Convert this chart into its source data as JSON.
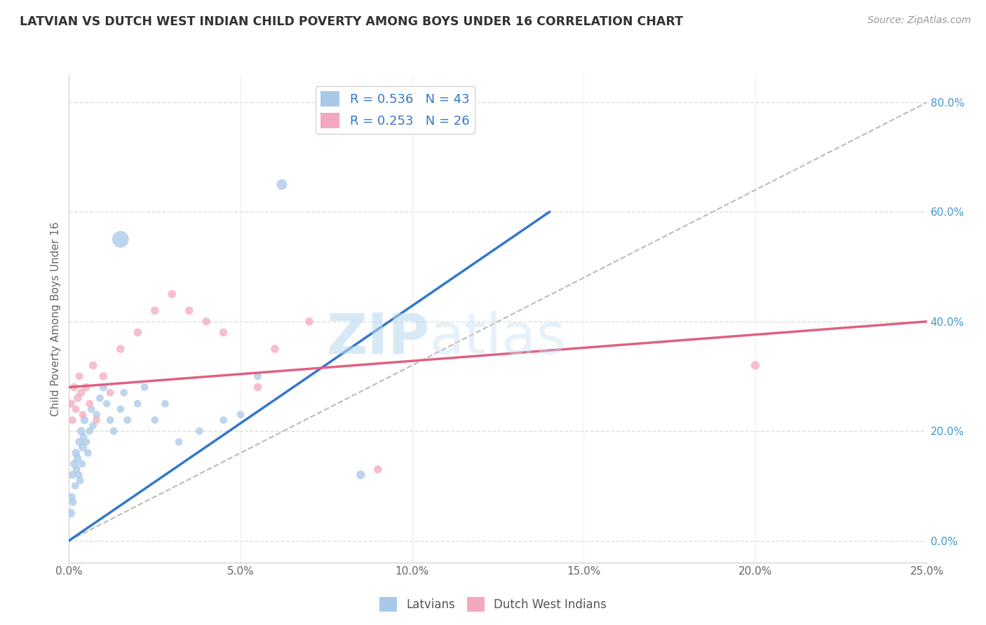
{
  "title": "LATVIAN VS DUTCH WEST INDIAN CHILD POVERTY AMONG BOYS UNDER 16 CORRELATION CHART",
  "source": "Source: ZipAtlas.com",
  "ylabel": "Child Poverty Among Boys Under 16",
  "xlabel_vals": [
    0.0,
    5.0,
    10.0,
    15.0,
    20.0,
    25.0
  ],
  "ylabel_vals": [
    0.0,
    20.0,
    40.0,
    60.0,
    80.0
  ],
  "xlim": [
    0,
    25
  ],
  "ylim": [
    -4,
    85
  ],
  "latvian_R": 0.536,
  "latvian_N": 43,
  "dutch_R": 0.253,
  "dutch_N": 26,
  "latvian_color": "#a8c8e8",
  "dutch_color": "#f4a8be",
  "latvian_line_color": "#3377cc",
  "dutch_line_color": "#e06080",
  "diagonal_color": "#bbbbbb",
  "watermark_zip": "ZIP",
  "watermark_atlas": "atlas",
  "latvian_line_x0": 0.0,
  "latvian_line_y0": 0.0,
  "latvian_line_x1": 14.0,
  "latvian_line_y1": 60.0,
  "dutch_line_x0": 0.0,
  "dutch_line_y0": 28.0,
  "dutch_line_x1": 25.0,
  "dutch_line_y1": 40.0,
  "diag_x0": 0.0,
  "diag_y0": 0.0,
  "diag_x1": 25.0,
  "diag_y1": 80.0,
  "latvian_pts_x": [
    0.05,
    0.08,
    0.1,
    0.12,
    0.15,
    0.18,
    0.2,
    0.22,
    0.25,
    0.28,
    0.3,
    0.32,
    0.35,
    0.38,
    0.4,
    0.42,
    0.45,
    0.5,
    0.55,
    0.6,
    0.65,
    0.7,
    0.8,
    0.9,
    1.0,
    1.1,
    1.2,
    1.3,
    1.5,
    1.6,
    1.7,
    2.0,
    2.2,
    2.5,
    2.8,
    3.2,
    3.8,
    4.5,
    5.0,
    5.5,
    1.5,
    6.2,
    8.5
  ],
  "latvian_pts_y": [
    5,
    8,
    12,
    7,
    14,
    10,
    16,
    13,
    15,
    12,
    18,
    11,
    20,
    14,
    17,
    19,
    22,
    18,
    16,
    20,
    24,
    21,
    23,
    26,
    28,
    25,
    22,
    20,
    24,
    27,
    22,
    25,
    28,
    22,
    25,
    18,
    20,
    22,
    23,
    30,
    55,
    65,
    12
  ],
  "latvian_pts_size": [
    80,
    60,
    70,
    60,
    70,
    60,
    70,
    60,
    70,
    60,
    70,
    60,
    70,
    60,
    70,
    60,
    70,
    60,
    60,
    60,
    60,
    60,
    60,
    60,
    70,
    60,
    60,
    60,
    60,
    60,
    60,
    60,
    60,
    60,
    60,
    60,
    60,
    60,
    60,
    60,
    300,
    120,
    80
  ],
  "dutch_pts_x": [
    0.05,
    0.1,
    0.15,
    0.2,
    0.25,
    0.3,
    0.35,
    0.4,
    0.5,
    0.6,
    0.7,
    0.8,
    1.0,
    1.2,
    1.5,
    2.0,
    2.5,
    3.0,
    3.5,
    4.0,
    4.5,
    5.5,
    6.0,
    7.0,
    9.0,
    20.0
  ],
  "dutch_pts_y": [
    25,
    22,
    28,
    24,
    26,
    30,
    27,
    23,
    28,
    25,
    32,
    22,
    30,
    27,
    35,
    38,
    42,
    45,
    42,
    40,
    38,
    28,
    35,
    40,
    13,
    32
  ],
  "dutch_pts_size": [
    70,
    60,
    70,
    60,
    70,
    60,
    70,
    60,
    70,
    60,
    70,
    60,
    70,
    60,
    70,
    70,
    70,
    70,
    70,
    70,
    70,
    70,
    70,
    70,
    70,
    80
  ]
}
